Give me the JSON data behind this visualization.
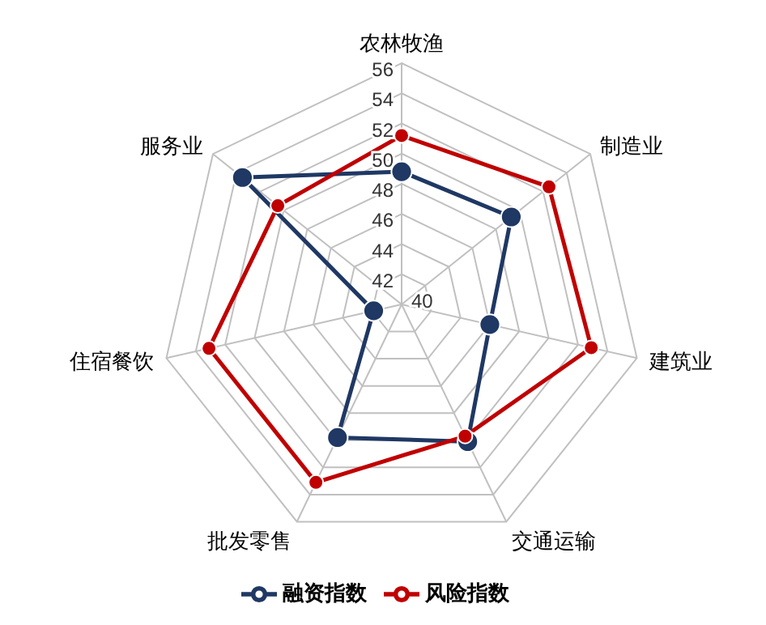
{
  "chart_data": {
    "type": "radar",
    "categories": [
      "农林牧渔",
      "制造业",
      "建筑业",
      "交通运输",
      "批发零售",
      "住宿餐饮",
      "服务业"
    ],
    "series": [
      {
        "name": "融资指数",
        "color": "#1f3864",
        "values": [
          48.8,
          49.3,
          46.0,
          50.1,
          49.8,
          41.9,
          53.5
        ]
      },
      {
        "name": "风险指数",
        "color": "#c00000",
        "values": [
          51.2,
          52.5,
          52.9,
          49.7,
          53.1,
          53.1,
          50.5
        ]
      }
    ],
    "ylim": [
      40,
      56
    ],
    "yticks": [
      40,
      42,
      44,
      46,
      48,
      50,
      52,
      54,
      56
    ],
    "grid": true,
    "legend": "bottom",
    "marker": "circle"
  }
}
